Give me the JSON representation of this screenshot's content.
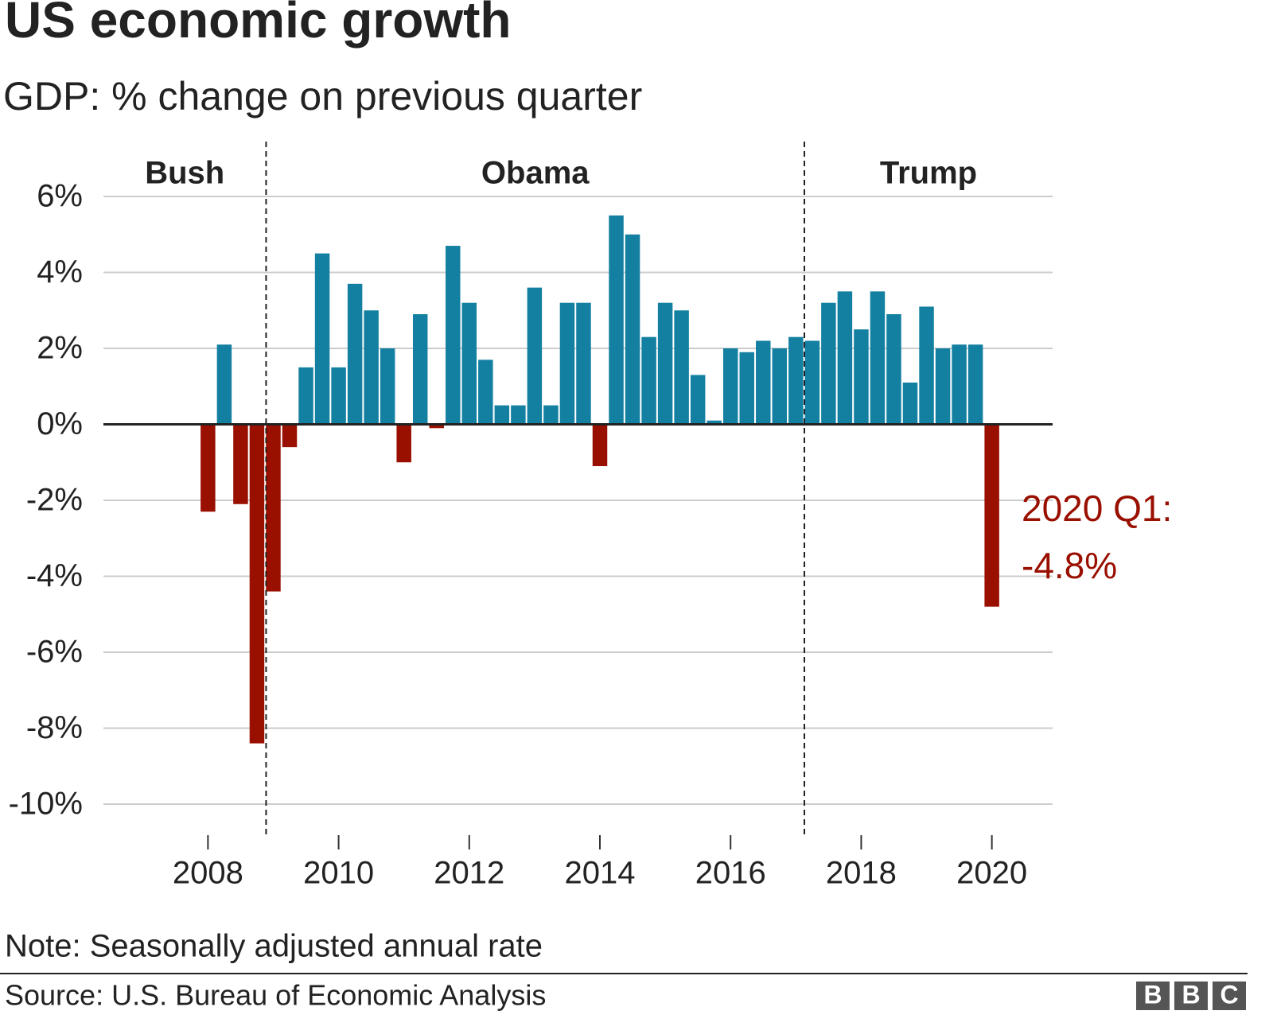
{
  "chart_data": {
    "type": "bar",
    "title": "US economic growth",
    "subtitle": "GDP: % change on previous quarter",
    "x": [
      2008,
      2008.25,
      2008.5,
      2008.75,
      2009,
      2009.25,
      2009.5,
      2009.75,
      2010,
      2010.25,
      2010.5,
      2010.75,
      2011,
      2011.25,
      2011.5,
      2011.75,
      2012,
      2012.25,
      2012.5,
      2012.75,
      2013,
      2013.25,
      2013.5,
      2013.75,
      2014,
      2014.25,
      2014.5,
      2014.75,
      2015,
      2015.25,
      2015.5,
      2015.75,
      2016,
      2016.25,
      2016.5,
      2016.75,
      2017,
      2017.25,
      2017.5,
      2017.75,
      2018,
      2018.25,
      2018.5,
      2018.75,
      2019,
      2019.25,
      2019.5,
      2019.75,
      2020
    ],
    "values": [
      -2.3,
      2.1,
      -2.1,
      -8.4,
      -4.4,
      -0.6,
      1.5,
      4.5,
      1.5,
      3.7,
      3.0,
      2.0,
      -1.0,
      2.9,
      -0.1,
      4.7,
      3.2,
      1.7,
      0.5,
      0.5,
      3.6,
      0.5,
      3.2,
      3.2,
      -1.1,
      5.5,
      5.0,
      2.3,
      3.2,
      3.0,
      1.3,
      0.1,
      2.0,
      1.9,
      2.2,
      2.0,
      2.3,
      2.2,
      3.2,
      3.5,
      2.5,
      3.5,
      2.9,
      1.1,
      3.1,
      2.0,
      2.1,
      2.1,
      -4.8
    ],
    "positive_color": "#1380a1",
    "negative_color": "#990f00",
    "xlim": [
      2006.4,
      2020.93
    ],
    "xticks": [
      2008,
      2010,
      2012,
      2014,
      2016,
      2018,
      2020
    ],
    "ylim": [
      -10,
      6
    ],
    "yticks": [
      {
        "value": 6,
        "label": "6%"
      },
      {
        "value": 4,
        "label": "4%"
      },
      {
        "value": 2,
        "label": "2%"
      },
      {
        "value": 0,
        "label": "0%"
      },
      {
        "value": -2,
        "label": "-2%"
      },
      {
        "value": -4,
        "label": "-4%"
      },
      {
        "value": -6,
        "label": "-6%"
      },
      {
        "value": -8,
        "label": "-8%"
      },
      {
        "value": -10,
        "label": "-10%"
      }
    ],
    "grid": true,
    "eras": [
      {
        "name": "Bush"
      },
      {
        "name": "Obama",
        "start": 2008.89
      },
      {
        "name": "Trump",
        "start": 2017.13
      }
    ],
    "annotation": [
      "2020 Q1:",
      "-4.8%"
    ],
    "note": "Note: Seasonally adjusted annual rate",
    "source": "Source: U.S. Bureau of Economic Analysis",
    "logo": [
      "B",
      "B",
      "C"
    ]
  }
}
